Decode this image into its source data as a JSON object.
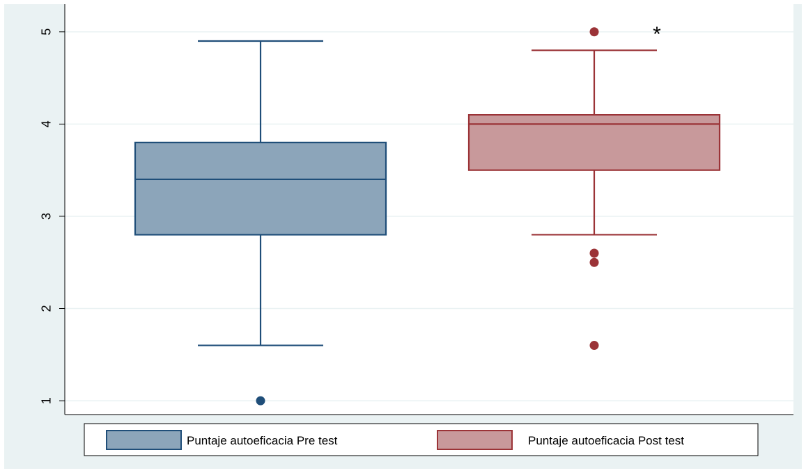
{
  "chart_data": {
    "type": "boxplot",
    "ylim": [
      0.85,
      5.3
    ],
    "yticks": [
      1,
      2,
      3,
      4,
      5
    ],
    "grid": true,
    "legend_position": "bottom",
    "annotation": "*",
    "series": [
      {
        "name": "Puntaje autoeficacia Pre test",
        "fill": "#8ca5ba",
        "stroke": "#1f4e79",
        "whisker_low": 1.6,
        "q1": 2.8,
        "median": 3.4,
        "q3": 3.8,
        "whisker_high": 4.9,
        "outliers": [
          1.0
        ]
      },
      {
        "name": "Puntaje autoeficacia Post test",
        "fill": "#c8999b",
        "stroke": "#9b3337",
        "whisker_low": 2.8,
        "q1": 3.5,
        "median": 4.0,
        "q3": 4.1,
        "whisker_high": 4.8,
        "outliers": [
          5.0,
          2.6,
          2.5,
          1.6
        ]
      }
    ]
  }
}
